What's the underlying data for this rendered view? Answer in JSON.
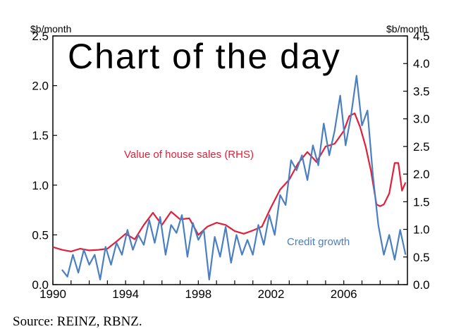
{
  "chart_data": {
    "type": "line",
    "title": "Chart of the day",
    "source": "Source: REINZ, RBNZ.",
    "left_axis": {
      "unit": "$b/month",
      "ylim": [
        0,
        2.5
      ],
      "ticks": [
        "0.0",
        "0.5",
        "1.0",
        "1.5",
        "2.0",
        "2.5"
      ]
    },
    "right_axis": {
      "unit": "$b/month",
      "ylim": [
        0,
        4.5
      ],
      "ticks": [
        "0.0",
        "0.5",
        "1.0",
        "1.5",
        "2.0",
        "2.5",
        "3.0",
        "3.5",
        "4.0",
        "4.5"
      ]
    },
    "x_axis": {
      "xlim": [
        1990,
        2009.5
      ],
      "ticks": [
        "1990",
        "1994",
        "1998",
        "2002",
        "2006"
      ]
    },
    "annotations": {
      "house": "Value of house sales (RHS)",
      "credit": "Credit growth"
    },
    "colors": {
      "house": "#e0203a",
      "credit": "#4a7fc1"
    },
    "series": [
      {
        "name": "Value of house sales (RHS)",
        "axis": "right",
        "x": [
          1990,
          1990.5,
          1991,
          1991.5,
          1992,
          1992.5,
          1993,
          1993.5,
          1994,
          1994.5,
          1995,
          1995.5,
          1996,
          1996.5,
          1997,
          1997.5,
          1998,
          1998.5,
          1999,
          1999.5,
          2000,
          2000.5,
          2001,
          2001.5,
          2002,
          2002.5,
          2003,
          2003.5,
          2004,
          2004.5,
          2005,
          2005.5,
          2006,
          2006.3,
          2006.6,
          2006.9,
          2007.2,
          2007.5,
          2007.8,
          2008,
          2008.2,
          2008.5,
          2008.8,
          2009,
          2009.2,
          2009.4
        ],
        "values": [
          0.68,
          0.63,
          0.6,
          0.65,
          0.62,
          0.63,
          0.65,
          0.78,
          0.92,
          0.82,
          1.08,
          1.3,
          1.08,
          1.32,
          1.18,
          1.2,
          0.9,
          1.05,
          1.12,
          1.08,
          0.97,
          0.92,
          0.98,
          1.05,
          1.4,
          1.72,
          1.9,
          2.2,
          2.4,
          2.22,
          2.5,
          2.55,
          2.78,
          3.05,
          3.1,
          2.85,
          2.5,
          2.05,
          1.45,
          1.42,
          1.45,
          1.65,
          2.2,
          2.2,
          1.7,
          1.85
        ]
      },
      {
        "name": "Credit growth",
        "axis": "left",
        "x": [
          1990.5,
          1990.8,
          1991.1,
          1991.4,
          1991.7,
          1992,
          1992.3,
          1992.6,
          1992.9,
          1993.2,
          1993.5,
          1993.8,
          1994.1,
          1994.4,
          1994.7,
          1995,
          1995.3,
          1995.6,
          1995.9,
          1996.2,
          1996.5,
          1996.8,
          1997.1,
          1997.4,
          1997.7,
          1998,
          1998.3,
          1998.6,
          1998.9,
          1999.2,
          1999.5,
          1999.8,
          2000.1,
          2000.4,
          2000.7,
          2001,
          2001.3,
          2001.6,
          2001.9,
          2002.2,
          2002.5,
          2002.8,
          2003.1,
          2003.4,
          2003.7,
          2004,
          2004.3,
          2004.6,
          2004.9,
          2005.2,
          2005.5,
          2005.8,
          2006.1,
          2006.4,
          2006.7,
          2007,
          2007.3,
          2007.6,
          2007.9,
          2008.2,
          2008.5,
          2008.8,
          2009.1,
          2009.4
        ],
        "values": [
          0.15,
          0.08,
          0.3,
          0.12,
          0.35,
          0.2,
          0.3,
          0.05,
          0.38,
          0.2,
          0.42,
          0.3,
          0.55,
          0.35,
          0.5,
          0.4,
          0.65,
          0.42,
          0.68,
          0.3,
          0.6,
          0.52,
          0.7,
          0.28,
          0.62,
          0.45,
          0.55,
          0.05,
          0.48,
          0.28,
          0.58,
          0.22,
          0.5,
          0.3,
          0.45,
          0.3,
          0.6,
          0.4,
          0.7,
          0.5,
          0.9,
          0.8,
          1.25,
          1.15,
          1.3,
          1.05,
          1.4,
          1.2,
          1.62,
          1.3,
          1.55,
          1.9,
          1.4,
          1.7,
          2.1,
          1.6,
          1.75,
          1.1,
          0.6,
          0.3,
          0.5,
          0.25,
          0.55,
          0.3
        ]
      }
    ]
  }
}
